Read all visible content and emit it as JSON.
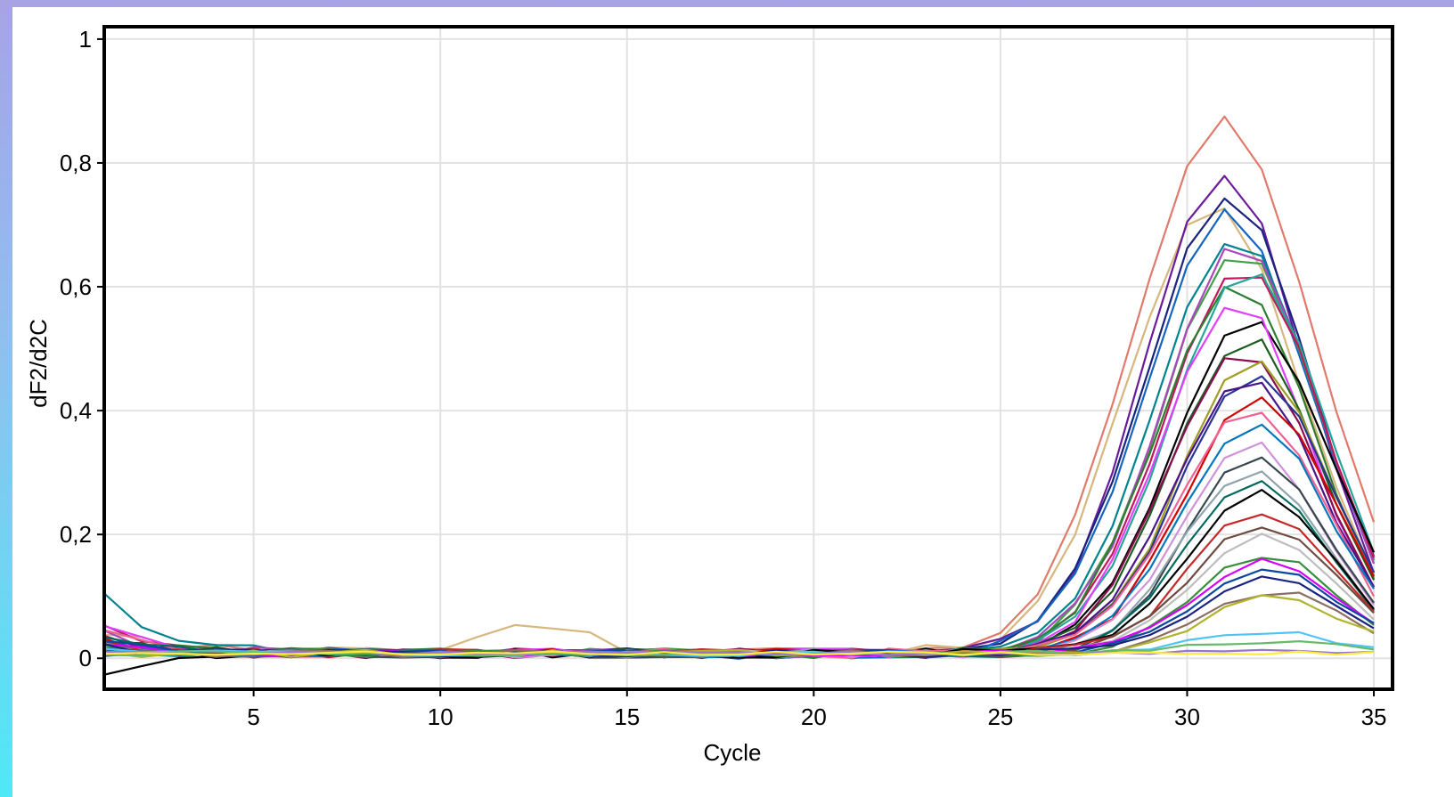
{
  "chart_data": {
    "type": "line",
    "title": "",
    "xlabel": "Cycle",
    "ylabel": "dF2/d2C",
    "xlim": [
      1,
      35.5
    ],
    "ylim": [
      -0.05,
      1.02
    ],
    "xticks": [
      5,
      10,
      15,
      20,
      25,
      30,
      35
    ],
    "xtick_labels": [
      "5",
      "10",
      "15",
      "20",
      "25",
      "30",
      "35"
    ],
    "yticks": [
      0,
      0.2,
      0.4,
      0.6,
      0.8,
      1
    ],
    "ytick_labels": [
      "0",
      "0,2",
      "0,4",
      "0,6",
      "0,8",
      "1"
    ],
    "grid": true,
    "legend": "none",
    "x": [
      1,
      2,
      3,
      4,
      5,
      6,
      7,
      8,
      9,
      10,
      11,
      12,
      13,
      14,
      15,
      16,
      17,
      18,
      19,
      20,
      21,
      22,
      23,
      24,
      25,
      26,
      27,
      28,
      29,
      30,
      31,
      32,
      33,
      34,
      35
    ],
    "series": [
      {
        "color": "#e07a6a",
        "peak": 0.86,
        "start": 0.02,
        "noise": 0.011,
        "peakAt": 31.0,
        "width": 2.4
      },
      {
        "color": "#d6b77e",
        "peak": 0.73,
        "start": 0.03,
        "noise": 0.012,
        "peakAt": 30.7,
        "width": 2.3,
        "bump": 0.05
      },
      {
        "color": "#6a1b9a",
        "peak": 0.77,
        "start": 0.01,
        "noise": 0.008,
        "peakAt": 31.0,
        "width": 2.15
      },
      {
        "color": "#1a237e",
        "peak": 0.74,
        "start": 0.0,
        "noise": 0.008,
        "peakAt": 31.1,
        "width": 2.2
      },
      {
        "color": "#1565c0",
        "peak": 0.71,
        "start": 0.02,
        "noise": 0.009,
        "peakAt": 31.1,
        "width": 2.2
      },
      {
        "color": "#00838f",
        "peak": 0.67,
        "start": 0.09,
        "noise": 0.007,
        "peakAt": 31.3,
        "width": 2.15
      },
      {
        "color": "#43a047",
        "peak": 0.65,
        "start": 0.01,
        "noise": 0.008,
        "peakAt": 31.4,
        "width": 2.1
      },
      {
        "color": "#ab47bc",
        "peak": 0.66,
        "start": 0.03,
        "noise": 0.009,
        "peakAt": 31.4,
        "width": 2.1
      },
      {
        "color": "#c2185b",
        "peak": 0.63,
        "start": 0.04,
        "noise": 0.008,
        "peakAt": 31.5,
        "width": 2.1
      },
      {
        "color": "#2e7d32",
        "peak": 0.59,
        "start": 0.02,
        "noise": 0.008,
        "peakAt": 31.3,
        "width": 2.1
      },
      {
        "color": "#26a69a",
        "peak": 0.62,
        "start": 0.01,
        "noise": 0.008,
        "peakAt": 31.6,
        "width": 2.1
      },
      {
        "color": "#000000",
        "peak": 0.54,
        "start": 0.0,
        "noise": 0.008,
        "peakAt": 31.7,
        "width": 2.1
      },
      {
        "color": "#e040fb",
        "peak": 0.57,
        "start": 0.04,
        "noise": 0.008,
        "peakAt": 31.3,
        "width": 2.0
      },
      {
        "color": "#1b5e20",
        "peak": 0.51,
        "start": 0.02,
        "noise": 0.008,
        "peakAt": 31.6,
        "width": 2.0
      },
      {
        "color": "#880e4f",
        "peak": 0.49,
        "start": 0.03,
        "noise": 0.008,
        "peakAt": 31.5,
        "width": 2.0
      },
      {
        "color": "#9e9d24",
        "peak": 0.47,
        "start": 0.01,
        "noise": 0.007,
        "peakAt": 31.8,
        "width": 2.0
      },
      {
        "color": "#283593",
        "peak": 0.45,
        "start": 0.02,
        "noise": 0.007,
        "peakAt": 31.8,
        "width": 2.0
      },
      {
        "color": "#4a148c",
        "peak": 0.44,
        "start": 0.01,
        "noise": 0.007,
        "peakAt": 31.6,
        "width": 2.0
      },
      {
        "color": "#d50000",
        "peak": 0.41,
        "start": 0.02,
        "noise": 0.008,
        "peakAt": 31.9,
        "width": 2.0
      },
      {
        "color": "#f06292",
        "peak": 0.39,
        "start": 0.03,
        "noise": 0.008,
        "peakAt": 31.7,
        "width": 2.0
      },
      {
        "color": "#0277bd",
        "peak": 0.37,
        "start": 0.01,
        "noise": 0.007,
        "peakAt": 31.8,
        "width": 2.0
      },
      {
        "color": "#ce93d8",
        "peak": 0.34,
        "start": 0.01,
        "noise": 0.007,
        "peakAt": 31.7,
        "width": 1.9
      },
      {
        "color": "#37474f",
        "peak": 0.32,
        "start": 0.0,
        "noise": 0.007,
        "peakAt": 31.9,
        "width": 1.9
      },
      {
        "color": "#90a4ae",
        "peak": 0.3,
        "start": 0.01,
        "noise": 0.007,
        "peakAt": 31.8,
        "width": 1.9
      },
      {
        "color": "#00695c",
        "peak": 0.28,
        "start": 0.02,
        "noise": 0.007,
        "peakAt": 31.9,
        "width": 1.9
      },
      {
        "color": "#000000",
        "peak": 0.26,
        "start": -0.03,
        "noise": 0.007,
        "peakAt": 32.0,
        "width": 1.9
      },
      {
        "color": "#c62828",
        "peak": 0.23,
        "start": 0.02,
        "noise": 0.007,
        "peakAt": 32.0,
        "width": 1.9
      },
      {
        "color": "#6d4c41",
        "peak": 0.21,
        "start": 0.01,
        "noise": 0.007,
        "peakAt": 32.0,
        "width": 1.9
      },
      {
        "color": "#bdbdbd",
        "peak": 0.19,
        "start": 0.01,
        "noise": 0.006,
        "peakAt": 32.1,
        "width": 1.9
      },
      {
        "color": "#388e3c",
        "peak": 0.16,
        "start": 0.01,
        "noise": 0.006,
        "peakAt": 32.1,
        "width": 1.85
      },
      {
        "color": "#d500f9",
        "peak": 0.15,
        "start": 0.02,
        "noise": 0.006,
        "peakAt": 32.1,
        "width": 1.85
      },
      {
        "color": "#0d47a1",
        "peak": 0.14,
        "start": 0.02,
        "noise": 0.006,
        "peakAt": 32.2,
        "width": 1.85
      },
      {
        "color": "#1a237e",
        "peak": 0.13,
        "start": 0.01,
        "noise": 0.006,
        "peakAt": 32.2,
        "width": 1.85
      },
      {
        "color": "#8d6e63",
        "peak": 0.1,
        "start": 0.0,
        "noise": 0.006,
        "peakAt": 32.3,
        "width": 1.85
      },
      {
        "color": "#afb42b",
        "peak": 0.09,
        "start": 0.0,
        "noise": 0.006,
        "peakAt": 32.3,
        "width": 1.85
      },
      {
        "color": "#4fc3f7",
        "peak": 0.035,
        "start": 0.01,
        "noise": 0.004,
        "peakAt": 32.0,
        "width": 1.9
      },
      {
        "color": "#66bb6a",
        "peak": 0.02,
        "start": 0.0,
        "noise": 0.004,
        "peakAt": 32.0,
        "width": 1.9
      },
      {
        "color": "#9575cd",
        "peak": 0.005,
        "start": 0.0,
        "noise": 0.003,
        "peakAt": 32.0,
        "width": 1.9
      },
      {
        "color": "#ffeb3b",
        "peak": 0.0,
        "start": 0.0,
        "noise": 0.003,
        "peakAt": 32.0,
        "width": 1.9
      }
    ]
  }
}
